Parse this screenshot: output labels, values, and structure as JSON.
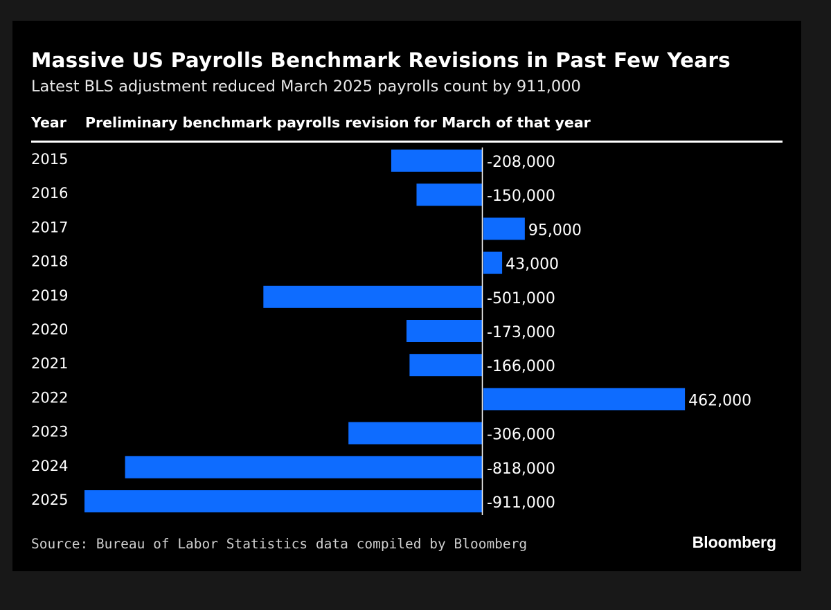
{
  "title": "Massive US Payrolls Benchmark Revisions in Past Few Years",
  "subtitle": "Latest BLS adjustment reduced March 2025 payrolls count by 911,000",
  "column_headers": {
    "year": "Year",
    "description": "Preliminary benchmark payrolls revision for March of that year"
  },
  "source": "Source: Bureau of Labor Statistics data compiled by Bloomberg",
  "brand": "Bloomberg",
  "colors": {
    "bar": "#0e6cff",
    "background": "#000000",
    "text": "#ffffff"
  },
  "chart_data": {
    "type": "bar",
    "orientation": "horizontal",
    "categories": [
      "2015",
      "2016",
      "2017",
      "2018",
      "2019",
      "2020",
      "2021",
      "2022",
      "2023",
      "2024",
      "2025"
    ],
    "values": [
      -208000,
      -150000,
      95000,
      43000,
      -501000,
      -173000,
      -166000,
      462000,
      -306000,
      -818000,
      -911000
    ],
    "labels": [
      "-208,000",
      "-150,000",
      "95,000",
      "43,000",
      "-501,000",
      "-173,000",
      "-166,000",
      "462,000",
      "-306,000",
      "-818,000",
      "-911,000"
    ],
    "xlim": [
      -911000,
      462000
    ],
    "grid": false
  }
}
